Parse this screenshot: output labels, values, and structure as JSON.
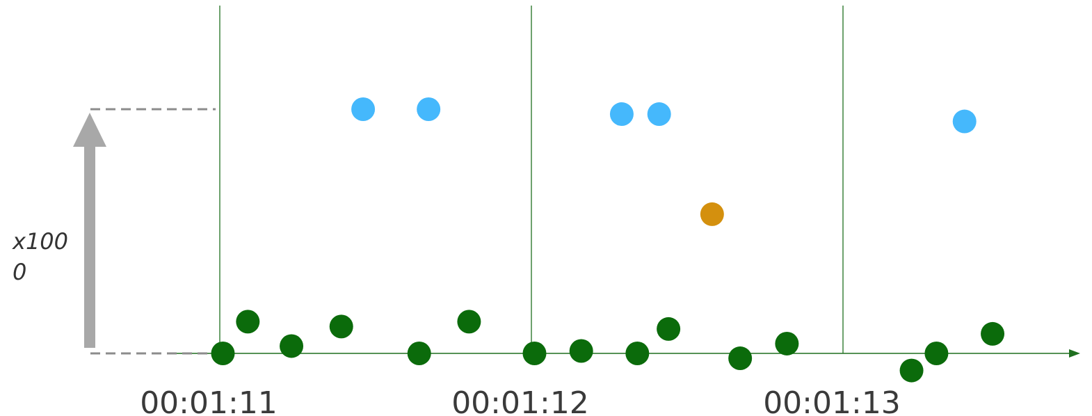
{
  "chart_data": {
    "type": "scatter",
    "title": "",
    "xlabel": "",
    "ylabel": "",
    "scale_label": "x1000",
    "scale_label_lines": [
      "x100",
      "0"
    ],
    "x_ticks": [
      "00:01:11",
      "00:01:12",
      "00:01:13"
    ],
    "xlim": [
      "00:01:11",
      "00:01:13.78"
    ],
    "grid": "vertical lines at second marks",
    "colors": {
      "green": "#0b6b0b",
      "blue": "#45b8fc",
      "orange": "#d4900e",
      "axis": "#1f6f1f",
      "arrow": "#a8a8a8"
    },
    "series": [
      {
        "color": "green",
        "points": [
          {
            "x": "00:01:11.01",
            "y": 0.0
          },
          {
            "x": "00:01:11.09",
            "y": 0.13
          },
          {
            "x": "00:01:11.23",
            "y": 0.03
          },
          {
            "x": "00:01:11.39",
            "y": 0.11
          },
          {
            "x": "00:01:11.64",
            "y": 0.0
          },
          {
            "x": "00:01:11.80",
            "y": 0.13
          },
          {
            "x": "00:01:12.01",
            "y": 0.0
          },
          {
            "x": "00:01:12.16",
            "y": 0.01
          },
          {
            "x": "00:01:12.34",
            "y": 0.0
          },
          {
            "x": "00:01:12.44",
            "y": 0.1
          },
          {
            "x": "00:01:12.67",
            "y": -0.02
          },
          {
            "x": "00:01:12.82",
            "y": 0.04
          },
          {
            "x": "00:01:13.22",
            "y": -0.07
          },
          {
            "x": "00:01:13.30",
            "y": 0.0
          },
          {
            "x": "00:01:13.48",
            "y": 0.08
          }
        ]
      },
      {
        "color": "blue",
        "points": [
          {
            "x": "00:01:11.46",
            "y": 1.0
          },
          {
            "x": "00:01:11.67",
            "y": 1.0
          },
          {
            "x": "00:01:12.29",
            "y": 0.98
          },
          {
            "x": "00:01:12.41",
            "y": 0.98
          },
          {
            "x": "00:01:13.39",
            "y": 0.95
          }
        ]
      },
      {
        "color": "orange",
        "points": [
          {
            "x": "00:01:12.58",
            "y": 0.57
          }
        ]
      }
    ],
    "ylim": [
      -0.12,
      1.4
    ],
    "reference_levels": [
      0,
      1
    ]
  }
}
